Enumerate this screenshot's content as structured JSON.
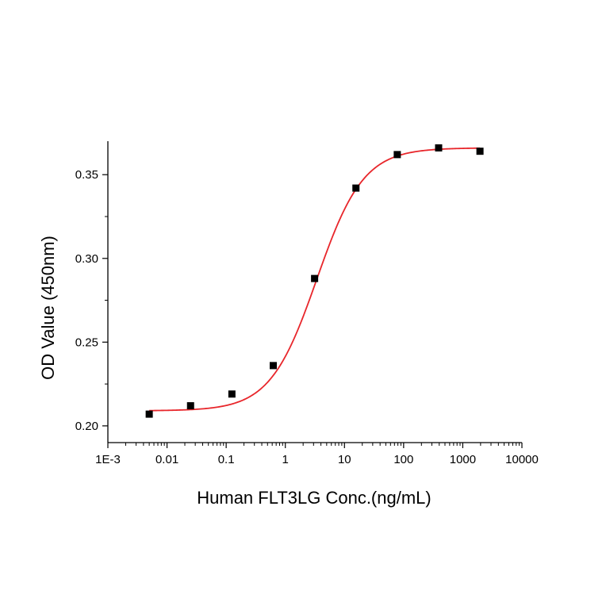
{
  "chart_data": {
    "type": "scatter",
    "title": "",
    "xlabel": "Human FLT3LG Conc.(ng/mL)",
    "ylabel": "OD Value (450nm)",
    "x_scale": "log",
    "xlim": [
      0.001,
      10000
    ],
    "ylim": [
      0.19,
      0.37
    ],
    "x_ticks": [
      0.001,
      0.01,
      0.1,
      1,
      10,
      100,
      1000,
      10000
    ],
    "x_tick_labels": [
      "1E-3",
      "0.01",
      "0.1",
      "1",
      "10",
      "100",
      "1000",
      "10000"
    ],
    "y_ticks": [
      0.2,
      0.25,
      0.3,
      0.35
    ],
    "y_tick_labels": [
      "0.20",
      "0.25",
      "0.30",
      "0.35"
    ],
    "grid": false,
    "legend": "none",
    "series": [
      {
        "kind": "points",
        "marker": "square",
        "color": "#000000",
        "x": [
          0.005,
          0.025,
          0.125,
          0.625,
          3.125,
          15.625,
          78.125,
          390.625,
          1953.125
        ],
        "y": [
          0.207,
          0.212,
          0.219,
          0.236,
          0.288,
          0.342,
          0.362,
          0.366,
          0.364
        ]
      },
      {
        "kind": "fit",
        "model": "4PL",
        "color": "#e8262b",
        "x_range": [
          0.005,
          1953.125
        ],
        "params": {
          "bottom": 0.209,
          "top": 0.366,
          "ec50": 3.4,
          "hill": 1.1
        }
      }
    ]
  }
}
